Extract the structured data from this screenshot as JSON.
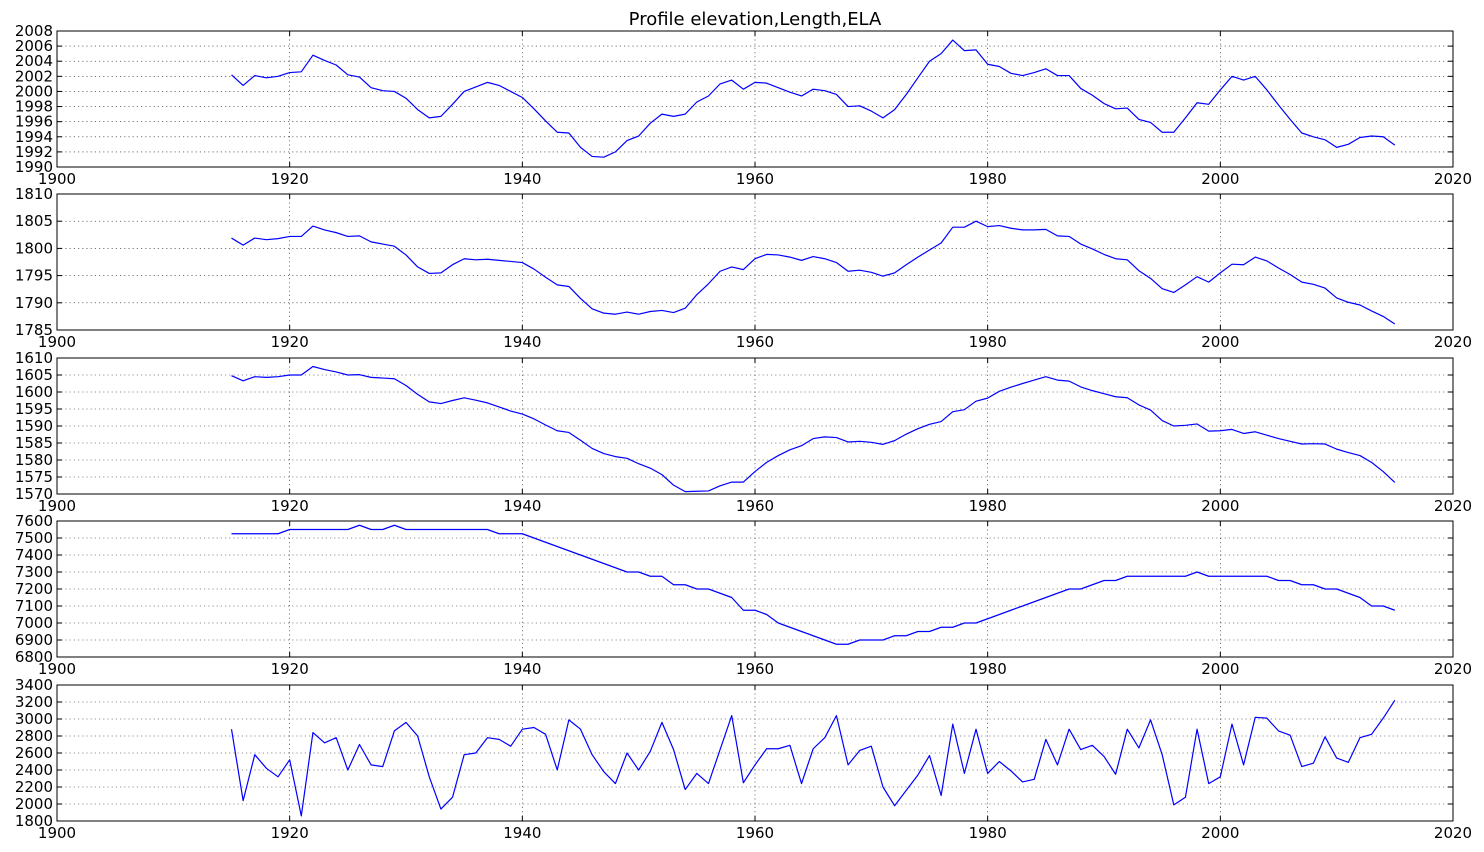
{
  "figure_title": "Profile elevation,Length,ELA",
  "colors": {
    "line": "#0000ff",
    "axis": "#000000",
    "background": "#ffffff"
  },
  "chart_data": [
    {
      "type": "line",
      "xlim": [
        1900,
        2020
      ],
      "ylim": [
        1990,
        2008
      ],
      "xticks": [
        1900,
        1920,
        1940,
        1960,
        1980,
        2000,
        2020
      ],
      "yticks": [
        1990,
        1992,
        1994,
        1996,
        1998,
        2000,
        2002,
        2004,
        2006,
        2008
      ],
      "grid": true,
      "x": [
        1915,
        1916,
        1917,
        1918,
        1919,
        1920,
        1921,
        1922,
        1923,
        1924,
        1925,
        1926,
        1927,
        1928,
        1929,
        1930,
        1931,
        1932,
        1933,
        1934,
        1935,
        1936,
        1937,
        1938,
        1939,
        1940,
        1941,
        1942,
        1943,
        1944,
        1945,
        1946,
        1947,
        1948,
        1949,
        1950,
        1951,
        1952,
        1953,
        1954,
        1955,
        1956,
        1957,
        1958,
        1959,
        1960,
        1961,
        1962,
        1963,
        1964,
        1965,
        1966,
        1967,
        1968,
        1969,
        1970,
        1971,
        1972,
        1973,
        1974,
        1975,
        1976,
        1977,
        1978,
        1979,
        1980,
        1981,
        1982,
        1983,
        1984,
        1985,
        1986,
        1987,
        1988,
        1989,
        1990,
        1991,
        1992,
        1993,
        1994,
        1995,
        1996,
        1997,
        1998,
        1999,
        2000,
        2001,
        2002,
        2003,
        2004,
        2005,
        2006,
        2007,
        2008,
        2009,
        2010,
        2011,
        2012,
        2013,
        2014,
        2015
      ],
      "y": [
        2002.2,
        2000.8,
        2002.1,
        2001.8,
        2002.0,
        2002.5,
        2002.6,
        2004.8,
        2004.1,
        2003.5,
        2002.2,
        2001.9,
        2000.5,
        2000.1,
        2000.0,
        1999.1,
        1997.6,
        1996.5,
        1996.7,
        1998.3,
        2000.0,
        2000.6,
        2001.2,
        2000.8,
        2000.0,
        1999.2,
        1997.7,
        1996.1,
        1994.6,
        1994.5,
        1992.6,
        1991.4,
        1991.3,
        1992.0,
        1993.5,
        1994.1,
        1995.8,
        1997.0,
        1996.7,
        1997.0,
        1998.6,
        1999.4,
        2001.0,
        2001.5,
        2000.3,
        2001.2,
        2001.1,
        2000.5,
        1999.9,
        1999.4,
        2000.3,
        2000.1,
        1999.6,
        1998.0,
        1998.1,
        1997.4,
        1996.5,
        1997.6,
        1999.6,
        2001.8,
        2004.0,
        2005.0,
        2006.8,
        2005.4,
        2005.5,
        2003.6,
        2003.3,
        2002.4,
        2002.1,
        2002.5,
        2003.0,
        2002.1,
        2002.1,
        2000.4,
        1999.5,
        1998.4,
        1997.7,
        1997.8,
        1996.3,
        1995.9,
        1994.6,
        1994.6,
        1996.5,
        1998.5,
        1998.3,
        2000.2,
        2002.0,
        2001.5,
        2002.0,
        2000.2,
        1998.2,
        1996.3,
        1994.5,
        1994.0,
        1993.6,
        1992.6,
        1993.0,
        1993.9,
        1994.1,
        1994.0,
        1992.9
      ]
    },
    {
      "type": "line",
      "xlim": [
        1900,
        2020
      ],
      "ylim": [
        1785,
        1810
      ],
      "xticks": [
        1900,
        1920,
        1940,
        1960,
        1980,
        2000,
        2020
      ],
      "yticks": [
        1785,
        1790,
        1795,
        1800,
        1805,
        1810
      ],
      "grid": true,
      "x": [
        1915,
        1916,
        1917,
        1918,
        1919,
        1920,
        1921,
        1922,
        1923,
        1924,
        1925,
        1926,
        1927,
        1928,
        1929,
        1930,
        1931,
        1932,
        1933,
        1934,
        1935,
        1936,
        1937,
        1938,
        1939,
        1940,
        1941,
        1942,
        1943,
        1944,
        1945,
        1946,
        1947,
        1948,
        1949,
        1950,
        1951,
        1952,
        1953,
        1954,
        1955,
        1956,
        1957,
        1958,
        1959,
        1960,
        1961,
        1962,
        1963,
        1964,
        1965,
        1966,
        1967,
        1968,
        1969,
        1970,
        1971,
        1972,
        1973,
        1974,
        1975,
        1976,
        1977,
        1978,
        1979,
        1980,
        1981,
        1982,
        1983,
        1984,
        1985,
        1986,
        1987,
        1988,
        1989,
        1990,
        1991,
        1992,
        1993,
        1994,
        1995,
        1996,
        1997,
        1998,
        1999,
        2000,
        2001,
        2002,
        2003,
        2004,
        2005,
        2006,
        2007,
        2008,
        2009,
        2010,
        2011,
        2012,
        2013,
        2014,
        2015
      ],
      "y": [
        1801.9,
        1800.6,
        1801.9,
        1801.6,
        1801.8,
        1802.2,
        1802.2,
        1804.1,
        1803.4,
        1802.9,
        1802.2,
        1802.3,
        1801.2,
        1800.8,
        1800.4,
        1798.8,
        1796.6,
        1795.4,
        1795.5,
        1797.0,
        1798.1,
        1797.9,
        1798.0,
        1797.8,
        1797.6,
        1797.4,
        1796.2,
        1794.7,
        1793.3,
        1793.0,
        1790.8,
        1788.9,
        1788.1,
        1787.9,
        1788.3,
        1787.9,
        1788.4,
        1788.6,
        1788.2,
        1789.0,
        1791.5,
        1793.5,
        1795.8,
        1796.6,
        1796.1,
        1798.1,
        1798.9,
        1798.8,
        1798.4,
        1797.8,
        1798.5,
        1798.1,
        1797.4,
        1795.8,
        1796.0,
        1795.6,
        1794.9,
        1795.5,
        1797.0,
        1798.4,
        1799.7,
        1801.0,
        1803.9,
        1803.9,
        1805.0,
        1804.0,
        1804.2,
        1803.7,
        1803.4,
        1803.4,
        1803.5,
        1802.3,
        1802.2,
        1800.8,
        1799.9,
        1798.9,
        1798.1,
        1797.9,
        1795.9,
        1794.5,
        1792.6,
        1791.9,
        1793.3,
        1794.8,
        1793.8,
        1795.5,
        1797.1,
        1797.0,
        1798.4,
        1797.7,
        1796.4,
        1795.2,
        1793.8,
        1793.4,
        1792.7,
        1790.9,
        1790.1,
        1789.6,
        1788.5,
        1787.5,
        1786.1
      ]
    },
    {
      "type": "line",
      "xlim": [
        1900,
        2020
      ],
      "ylim": [
        1570,
        1610
      ],
      "xticks": [
        1900,
        1920,
        1940,
        1960,
        1980,
        2000,
        2020
      ],
      "yticks": [
        1570,
        1575,
        1580,
        1585,
        1590,
        1595,
        1600,
        1605,
        1610
      ],
      "grid": true,
      "x": [
        1915,
        1916,
        1917,
        1918,
        1919,
        1920,
        1921,
        1922,
        1923,
        1924,
        1925,
        1926,
        1927,
        1928,
        1929,
        1930,
        1931,
        1932,
        1933,
        1934,
        1935,
        1936,
        1937,
        1938,
        1939,
        1940,
        1941,
        1942,
        1943,
        1944,
        1945,
        1946,
        1947,
        1948,
        1949,
        1950,
        1951,
        1952,
        1953,
        1954,
        1955,
        1956,
        1957,
        1958,
        1959,
        1960,
        1961,
        1962,
        1963,
        1964,
        1965,
        1966,
        1967,
        1968,
        1969,
        1970,
        1971,
        1972,
        1973,
        1974,
        1975,
        1976,
        1977,
        1978,
        1979,
        1980,
        1981,
        1982,
        1983,
        1984,
        1985,
        1986,
        1987,
        1988,
        1989,
        1990,
        1991,
        1992,
        1993,
        1994,
        1995,
        1996,
        1997,
        1998,
        1999,
        2000,
        2001,
        2002,
        2003,
        2004,
        2005,
        2006,
        2007,
        2008,
        2009,
        2010,
        2011,
        2012,
        2013,
        2014,
        2015
      ],
      "y": [
        1604.8,
        1603.3,
        1604.5,
        1604.3,
        1604.5,
        1605.0,
        1605.0,
        1607.5,
        1606.6,
        1605.9,
        1605.0,
        1605.1,
        1604.3,
        1604.1,
        1603.9,
        1601.9,
        1599.3,
        1597.1,
        1596.6,
        1597.5,
        1598.3,
        1597.6,
        1596.8,
        1595.6,
        1594.4,
        1593.5,
        1592.1,
        1590.3,
        1588.6,
        1588.1,
        1585.8,
        1583.4,
        1581.9,
        1581.0,
        1580.5,
        1578.9,
        1577.6,
        1575.7,
        1572.6,
        1570.7,
        1570.8,
        1570.9,
        1572.4,
        1573.5,
        1573.5,
        1576.6,
        1579.3,
        1581.3,
        1583.0,
        1584.2,
        1586.3,
        1586.8,
        1586.6,
        1585.3,
        1585.5,
        1585.2,
        1584.6,
        1585.7,
        1587.6,
        1589.2,
        1590.5,
        1591.3,
        1594.2,
        1594.8,
        1597.3,
        1598.2,
        1600.2,
        1601.4,
        1602.5,
        1603.5,
        1604.5,
        1603.5,
        1603.2,
        1601.5,
        1600.4,
        1599.5,
        1598.6,
        1598.3,
        1596.2,
        1594.7,
        1591.6,
        1590.0,
        1590.2,
        1590.6,
        1588.5,
        1588.6,
        1589.0,
        1587.8,
        1588.3,
        1587.3,
        1586.3,
        1585.5,
        1584.7,
        1584.8,
        1584.7,
        1583.2,
        1582.2,
        1581.3,
        1579.3,
        1576.6,
        1573.4
      ]
    },
    {
      "type": "line",
      "xlim": [
        1900,
        2020
      ],
      "ylim": [
        6800,
        7600
      ],
      "xticks": [
        1900,
        1920,
        1940,
        1960,
        1980,
        2000,
        2020
      ],
      "yticks": [
        6800,
        6900,
        7000,
        7100,
        7200,
        7300,
        7400,
        7500,
        7600
      ],
      "grid": true,
      "x": [
        1915,
        1916,
        1917,
        1918,
        1919,
        1920,
        1921,
        1922,
        1923,
        1924,
        1925,
        1926,
        1927,
        1928,
        1929,
        1930,
        1931,
        1932,
        1933,
        1934,
        1935,
        1936,
        1937,
        1938,
        1939,
        1940,
        1941,
        1942,
        1943,
        1944,
        1945,
        1946,
        1947,
        1948,
        1949,
        1950,
        1951,
        1952,
        1953,
        1954,
        1955,
        1956,
        1957,
        1958,
        1959,
        1960,
        1961,
        1962,
        1963,
        1964,
        1965,
        1966,
        1967,
        1968,
        1969,
        1970,
        1971,
        1972,
        1973,
        1974,
        1975,
        1976,
        1977,
        1978,
        1979,
        1980,
        1981,
        1982,
        1983,
        1984,
        1985,
        1986,
        1987,
        1988,
        1989,
        1990,
        1991,
        1992,
        1993,
        1994,
        1995,
        1996,
        1997,
        1998,
        1999,
        2000,
        2001,
        2002,
        2003,
        2004,
        2005,
        2006,
        2007,
        2008,
        2009,
        2010,
        2011,
        2012,
        2013,
        2014,
        2015
      ],
      "y": [
        7525,
        7525,
        7525,
        7525,
        7525,
        7550,
        7550,
        7550,
        7550,
        7550,
        7550,
        7575,
        7550,
        7550,
        7575,
        7550,
        7550,
        7550,
        7550,
        7550,
        7550,
        7550,
        7550,
        7525,
        7525,
        7525,
        7500,
        7475,
        7450,
        7425,
        7400,
        7375,
        7350,
        7325,
        7300,
        7300,
        7275,
        7275,
        7225,
        7225,
        7200,
        7200,
        7175,
        7150,
        7075,
        7075,
        7050,
        7000,
        6975,
        6950,
        6925,
        6900,
        6875,
        6875,
        6900,
        6900,
        6900,
        6925,
        6925,
        6950,
        6950,
        6975,
        6975,
        7000,
        7000,
        7025,
        7050,
        7075,
        7100,
        7125,
        7150,
        7175,
        7200,
        7200,
        7225,
        7250,
        7250,
        7275,
        7275,
        7275,
        7275,
        7275,
        7275,
        7300,
        7275,
        7275,
        7275,
        7275,
        7275,
        7275,
        7250,
        7250,
        7225,
        7225,
        7200,
        7200,
        7175,
        7150,
        7100,
        7100,
        7075
      ]
    },
    {
      "type": "line",
      "xlim": [
        1900,
        2020
      ],
      "ylim": [
        1800,
        3400
      ],
      "xticks": [
        1900,
        1920,
        1940,
        1960,
        1980,
        2000,
        2020
      ],
      "yticks": [
        1800,
        2000,
        2200,
        2400,
        2600,
        2800,
        3000,
        3200,
        3400
      ],
      "grid": true,
      "x": [
        1915,
        1916,
        1917,
        1918,
        1919,
        1920,
        1921,
        1922,
        1923,
        1924,
        1925,
        1926,
        1927,
        1928,
        1929,
        1930,
        1931,
        1932,
        1933,
        1934,
        1935,
        1936,
        1937,
        1938,
        1939,
        1940,
        1941,
        1942,
        1943,
        1944,
        1945,
        1946,
        1947,
        1948,
        1949,
        1950,
        1951,
        1952,
        1953,
        1954,
        1955,
        1956,
        1957,
        1958,
        1959,
        1960,
        1961,
        1962,
        1963,
        1964,
        1965,
        1966,
        1967,
        1968,
        1969,
        1970,
        1971,
        1972,
        1973,
        1974,
        1975,
        1976,
        1977,
        1978,
        1979,
        1980,
        1981,
        1982,
        1983,
        1984,
        1985,
        1986,
        1987,
        1988,
        1989,
        1990,
        1991,
        1992,
        1993,
        1994,
        1995,
        1996,
        1997,
        1998,
        1999,
        2000,
        2001,
        2002,
        2003,
        2004,
        2005,
        2006,
        2007,
        2008,
        2009,
        2010,
        2011,
        2012,
        2013,
        2014,
        2015
      ],
      "y": [
        2880,
        2040,
        2580,
        2420,
        2320,
        2520,
        1860,
        2840,
        2720,
        2780,
        2400,
        2700,
        2460,
        2440,
        2860,
        2960,
        2800,
        2320,
        1940,
        2080,
        2580,
        2600,
        2780,
        2760,
        2680,
        2880,
        2900,
        2820,
        2400,
        2990,
        2880,
        2580,
        2380,
        2240,
        2600,
        2400,
        2620,
        2960,
        2640,
        2170,
        2360,
        2240,
        2640,
        3040,
        2250,
        2460,
        2650,
        2650,
        2690,
        2240,
        2650,
        2780,
        3040,
        2460,
        2630,
        2680,
        2200,
        1980,
        2160,
        2340,
        2570,
        2100,
        2940,
        2360,
        2880,
        2360,
        2500,
        2390,
        2260,
        2290,
        2760,
        2460,
        2880,
        2640,
        2690,
        2560,
        2350,
        2880,
        2660,
        2990,
        2580,
        1990,
        2080,
        2880,
        2240,
        2320,
        2940,
        2460,
        3020,
        3010,
        2860,
        2810,
        2440,
        2480,
        2790,
        2540,
        2490,
        2780,
        2820,
        3010,
        3220
      ]
    }
  ]
}
